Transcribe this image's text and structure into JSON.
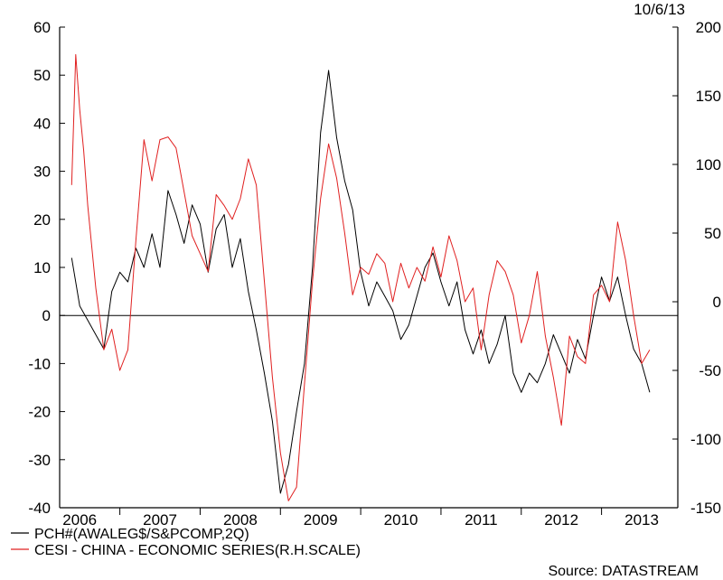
{
  "date_label": "10/6/13",
  "source_label": "Source: DATASTREAM",
  "chart_data": {
    "type": "line",
    "x_tick_labels": [
      "2006",
      "2007",
      "2008",
      "2009",
      "2010",
      "2011",
      "2012",
      "2013"
    ],
    "y_left": {
      "range": [
        -40,
        60
      ],
      "ticks": [
        60,
        50,
        40,
        30,
        20,
        10,
        0,
        -10,
        -20,
        -30,
        -40
      ]
    },
    "y_right": {
      "range": [
        -150,
        200
      ],
      "ticks": [
        200,
        150,
        100,
        50,
        0,
        -50,
        -100,
        -150
      ]
    },
    "zero_line": true,
    "legend_position": "bottom-left",
    "series": [
      {
        "name": "PCH#(AWALEG$/S&PCOMP,2Q)",
        "axis": "left",
        "color": "#000000",
        "points": [
          [
            2006.0,
            12
          ],
          [
            2006.1,
            2
          ],
          [
            2006.2,
            -1
          ],
          [
            2006.3,
            -4
          ],
          [
            2006.4,
            -7
          ],
          [
            2006.5,
            5
          ],
          [
            2006.6,
            9
          ],
          [
            2006.7,
            7
          ],
          [
            2006.8,
            14
          ],
          [
            2006.9,
            10
          ],
          [
            2007.0,
            17
          ],
          [
            2007.1,
            10
          ],
          [
            2007.2,
            26
          ],
          [
            2007.3,
            21
          ],
          [
            2007.4,
            15
          ],
          [
            2007.5,
            23
          ],
          [
            2007.6,
            19
          ],
          [
            2007.7,
            9
          ],
          [
            2007.8,
            18
          ],
          [
            2007.9,
            21
          ],
          [
            2008.0,
            10
          ],
          [
            2008.1,
            16
          ],
          [
            2008.2,
            5
          ],
          [
            2008.3,
            -3
          ],
          [
            2008.4,
            -12
          ],
          [
            2008.5,
            -22
          ],
          [
            2008.6,
            -37
          ],
          [
            2008.7,
            -31
          ],
          [
            2008.8,
            -20
          ],
          [
            2008.9,
            -10
          ],
          [
            2009.0,
            10
          ],
          [
            2009.1,
            38
          ],
          [
            2009.2,
            51
          ],
          [
            2009.3,
            37
          ],
          [
            2009.4,
            28
          ],
          [
            2009.5,
            22
          ],
          [
            2009.6,
            9
          ],
          [
            2009.7,
            2
          ],
          [
            2009.8,
            7
          ],
          [
            2009.9,
            4
          ],
          [
            2010.0,
            1
          ],
          [
            2010.1,
            -5
          ],
          [
            2010.2,
            -2
          ],
          [
            2010.3,
            4
          ],
          [
            2010.4,
            10
          ],
          [
            2010.5,
            13
          ],
          [
            2010.6,
            7
          ],
          [
            2010.7,
            2
          ],
          [
            2010.8,
            7
          ],
          [
            2010.9,
            -3
          ],
          [
            2011.0,
            -8
          ],
          [
            2011.1,
            -3
          ],
          [
            2011.2,
            -10
          ],
          [
            2011.3,
            -6
          ],
          [
            2011.4,
            0
          ],
          [
            2011.5,
            -12
          ],
          [
            2011.6,
            -16
          ],
          [
            2011.7,
            -12
          ],
          [
            2011.8,
            -14
          ],
          [
            2011.9,
            -10
          ],
          [
            2012.0,
            -4
          ],
          [
            2012.1,
            -8
          ],
          [
            2012.2,
            -12
          ],
          [
            2012.3,
            -5
          ],
          [
            2012.4,
            -9
          ],
          [
            2012.5,
            0
          ],
          [
            2012.6,
            8
          ],
          [
            2012.7,
            3
          ],
          [
            2012.8,
            8
          ],
          [
            2012.9,
            0
          ],
          [
            2013.0,
            -7
          ],
          [
            2013.1,
            -10
          ],
          [
            2013.2,
            -16
          ]
        ]
      },
      {
        "name": "CESI - CHINA - ECONOMIC SERIES(R.H.SCALE)",
        "axis": "right",
        "color": "#e02020",
        "points": [
          [
            2006.0,
            85
          ],
          [
            2006.05,
            180
          ],
          [
            2006.1,
            140
          ],
          [
            2006.15,
            110
          ],
          [
            2006.2,
            70
          ],
          [
            2006.3,
            10
          ],
          [
            2006.4,
            -35
          ],
          [
            2006.5,
            -20
          ],
          [
            2006.6,
            -50
          ],
          [
            2006.7,
            -35
          ],
          [
            2006.8,
            45
          ],
          [
            2006.9,
            118
          ],
          [
            2007.0,
            88
          ],
          [
            2007.1,
            118
          ],
          [
            2007.2,
            120
          ],
          [
            2007.3,
            112
          ],
          [
            2007.4,
            80
          ],
          [
            2007.5,
            48
          ],
          [
            2007.6,
            35
          ],
          [
            2007.7,
            22
          ],
          [
            2007.8,
            78
          ],
          [
            2007.9,
            70
          ],
          [
            2008.0,
            60
          ],
          [
            2008.1,
            75
          ],
          [
            2008.2,
            104
          ],
          [
            2008.3,
            85
          ],
          [
            2008.4,
            15
          ],
          [
            2008.5,
            -55
          ],
          [
            2008.6,
            -110
          ],
          [
            2008.7,
            -145
          ],
          [
            2008.8,
            -135
          ],
          [
            2008.9,
            -60
          ],
          [
            2009.0,
            15
          ],
          [
            2009.1,
            75
          ],
          [
            2009.2,
            115
          ],
          [
            2009.3,
            90
          ],
          [
            2009.4,
            50
          ],
          [
            2009.5,
            5
          ],
          [
            2009.6,
            25
          ],
          [
            2009.7,
            20
          ],
          [
            2009.8,
            35
          ],
          [
            2009.9,
            28
          ],
          [
            2010.0,
            0
          ],
          [
            2010.1,
            28
          ],
          [
            2010.2,
            10
          ],
          [
            2010.3,
            25
          ],
          [
            2010.4,
            15
          ],
          [
            2010.5,
            40
          ],
          [
            2010.6,
            18
          ],
          [
            2010.7,
            48
          ],
          [
            2010.8,
            30
          ],
          [
            2010.9,
            0
          ],
          [
            2011.0,
            10
          ],
          [
            2011.1,
            -35
          ],
          [
            2011.2,
            5
          ],
          [
            2011.3,
            30
          ],
          [
            2011.4,
            22
          ],
          [
            2011.5,
            5
          ],
          [
            2011.6,
            -30
          ],
          [
            2011.7,
            -10
          ],
          [
            2011.8,
            22
          ],
          [
            2011.9,
            -25
          ],
          [
            2012.0,
            -55
          ],
          [
            2012.1,
            -90
          ],
          [
            2012.2,
            -25
          ],
          [
            2012.3,
            -40
          ],
          [
            2012.4,
            -45
          ],
          [
            2012.5,
            5
          ],
          [
            2012.6,
            12
          ],
          [
            2012.7,
            0
          ],
          [
            2012.8,
            58
          ],
          [
            2012.9,
            30
          ],
          [
            2013.0,
            -10
          ],
          [
            2013.1,
            -45
          ],
          [
            2013.2,
            -35
          ]
        ]
      }
    ]
  }
}
